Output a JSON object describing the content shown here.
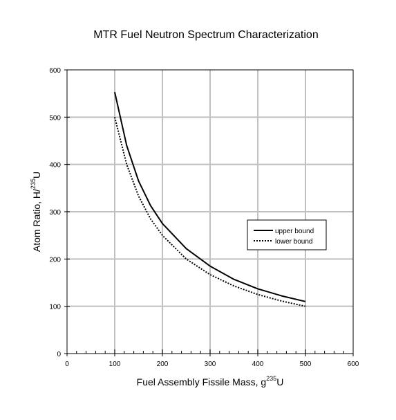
{
  "chart_data": {
    "type": "line",
    "title": "MTR Fuel Neutron Spectrum Characterization",
    "xlabel": {
      "text": "Fuel Assembly Fissile Mass, g",
      "sup": "235",
      "suffix": "U"
    },
    "ylabel": {
      "text": "Atom Ratio, H/",
      "sup": "235",
      "suffix": "U"
    },
    "xlim": [
      0,
      600
    ],
    "ylim": [
      0,
      600
    ],
    "x_major_ticks": [
      0,
      100,
      200,
      300,
      400,
      500,
      600
    ],
    "y_major_ticks": [
      0,
      100,
      200,
      300,
      400,
      500,
      600
    ],
    "x_minor_step": 20,
    "grid": "major",
    "legend_position": "right-middle",
    "series": [
      {
        "name": "upper bound",
        "style": "solid",
        "color": "#000000",
        "x": [
          100,
          125,
          150,
          175,
          200,
          250,
          300,
          350,
          400,
          450,
          500
        ],
        "y": [
          553,
          440,
          365,
          313,
          275,
          222,
          185,
          157,
          137,
          122,
          110
        ]
      },
      {
        "name": "lower bound",
        "style": "dotted",
        "color": "#000000",
        "x": [
          100,
          125,
          150,
          175,
          200,
          250,
          300,
          350,
          400,
          450,
          500
        ],
        "y": [
          500,
          400,
          333,
          285,
          250,
          200,
          167,
          143,
          125,
          111,
          100
        ]
      }
    ]
  }
}
